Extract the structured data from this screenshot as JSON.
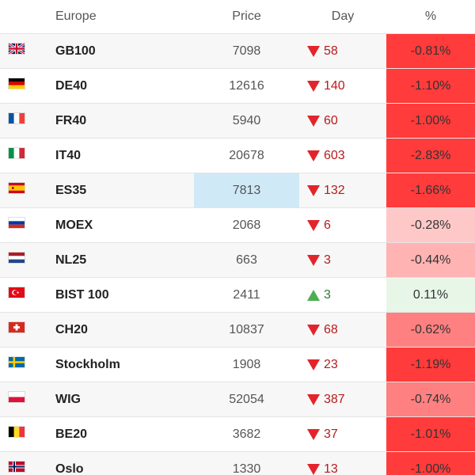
{
  "header": {
    "region": "Europe",
    "price": "Price",
    "day": "Day",
    "pct": "%"
  },
  "colors": {
    "down_strong": "#ff3b3b",
    "down_medium": "#ff8080",
    "down_light": "#ffb3b3",
    "down_lighter": "#ffc8c8",
    "up_light": "#e8f6e8",
    "highlight_price": "#cfe9f7"
  },
  "rows": [
    {
      "flag": "gb-flag-icon",
      "name": "GB100",
      "price": "7098",
      "direction": "down",
      "day": "58",
      "pct": "-0.81%",
      "pct_color": "#ff3b3b"
    },
    {
      "flag": "de-flag-icon",
      "name": "DE40",
      "price": "12616",
      "direction": "down",
      "day": "140",
      "pct": "-1.10%",
      "pct_color": "#ff3b3b"
    },
    {
      "flag": "fr-flag-icon",
      "name": "FR40",
      "price": "5940",
      "direction": "down",
      "day": "60",
      "pct": "-1.00%",
      "pct_color": "#ff3b3b"
    },
    {
      "flag": "it-flag-icon",
      "name": "IT40",
      "price": "20678",
      "direction": "down",
      "day": "603",
      "pct": "-2.83%",
      "pct_color": "#ff3b3b"
    },
    {
      "flag": "es-flag-icon",
      "name": "ES35",
      "price": "7813",
      "direction": "down",
      "day": "132",
      "pct": "-1.66%",
      "pct_color": "#ff3b3b",
      "highlight": true
    },
    {
      "flag": "ru-flag-icon",
      "name": "MOEX",
      "price": "2068",
      "direction": "down",
      "day": "6",
      "pct": "-0.28%",
      "pct_color": "#ffc8c8"
    },
    {
      "flag": "nl-flag-icon",
      "name": "NL25",
      "price": "663",
      "direction": "down",
      "day": "3",
      "pct": "-0.44%",
      "pct_color": "#ffb3b3"
    },
    {
      "flag": "tr-flag-icon",
      "name": "BIST 100",
      "price": "2411",
      "direction": "up",
      "day": "3",
      "pct": "0.11%",
      "pct_color": "#e8f6e8"
    },
    {
      "flag": "ch-flag-icon",
      "name": "CH20",
      "price": "10837",
      "direction": "down",
      "day": "68",
      "pct": "-0.62%",
      "pct_color": "#ff8080"
    },
    {
      "flag": "se-flag-icon",
      "name": "Stockholm",
      "price": "1908",
      "direction": "down",
      "day": "23",
      "pct": "-1.19%",
      "pct_color": "#ff3b3b"
    },
    {
      "flag": "pl-flag-icon",
      "name": "WIG",
      "price": "52054",
      "direction": "down",
      "day": "387",
      "pct": "-0.74%",
      "pct_color": "#ff8080"
    },
    {
      "flag": "be-flag-icon",
      "name": "BE20",
      "price": "3682",
      "direction": "down",
      "day": "37",
      "pct": "-1.01%",
      "pct_color": "#ff3b3b"
    },
    {
      "flag": "no-flag-icon",
      "name": "Oslo",
      "price": "1330",
      "direction": "down",
      "day": "13",
      "pct": "-1.00%",
      "pct_color": "#ff3b3b"
    }
  ]
}
